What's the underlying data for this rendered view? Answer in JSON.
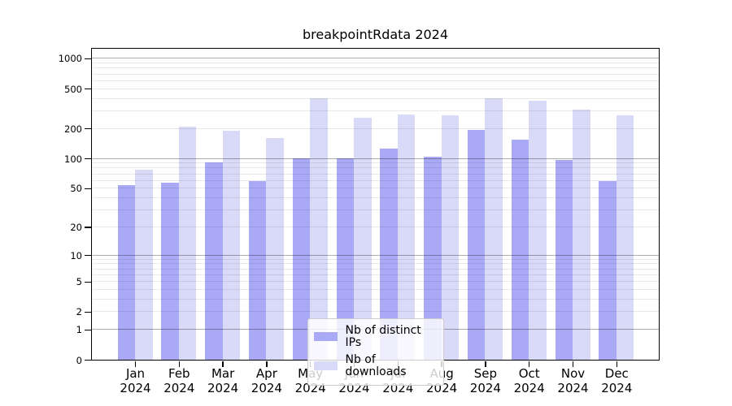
{
  "figure": {
    "title": "breakpointRdata 2024"
  },
  "y_axis": {
    "tick_labels": [
      "1000",
      "500",
      "200",
      "100",
      "50",
      "20",
      "10",
      "5",
      "2",
      "1",
      "0"
    ],
    "tick_values": [
      1000,
      500,
      200,
      100,
      50,
      20,
      10,
      5,
      2,
      1,
      0
    ]
  },
  "x_axis": {
    "months": [
      "Jan",
      "Feb",
      "Mar",
      "Apr",
      "May",
      "Jun",
      "Jul",
      "Aug",
      "Sep",
      "Oct",
      "Nov",
      "Dec"
    ],
    "year": "2024"
  },
  "legend": {
    "items": [
      {
        "label": "Nb of distinct IPs",
        "color": "#a9a9f6"
      },
      {
        "label": "Nb of downloads",
        "color": "#d9d9f8"
      }
    ]
  },
  "colors": {
    "bar_dark": "#a9a9f6",
    "bar_light": "#d9d9f8",
    "spine": "#000000",
    "background": "#ffffff"
  },
  "chart_data": {
    "type": "bar",
    "title": "breakpointRdata 2024",
    "categories": [
      "Jan 2024",
      "Feb 2024",
      "Mar 2024",
      "Apr 2024",
      "May 2024",
      "Jun 2024",
      "Jul 2024",
      "Aug 2024",
      "Sep 2024",
      "Oct 2024",
      "Nov 2024",
      "Dec 2024"
    ],
    "series": [
      {
        "name": "Nb of distinct IPs",
        "color": "#a9a9f6",
        "values": [
          54,
          57,
          92,
          59,
          100,
          100,
          125,
          104,
          194,
          153,
          96,
          59
        ]
      },
      {
        "name": "Nb of downloads",
        "color": "#d9d9f8",
        "values": [
          77,
          207,
          190,
          160,
          403,
          255,
          274,
          272,
          400,
          380,
          310,
          271
        ]
      }
    ],
    "yscale": "log1p",
    "ylim": [
      0,
      1260
    ],
    "yticks": [
      0,
      1,
      2,
      5,
      10,
      20,
      50,
      100,
      200,
      500,
      1000
    ],
    "major_gridlines": [
      1,
      10,
      100,
      1000
    ],
    "minor_gridlines": [
      2,
      3,
      4,
      5,
      6,
      7,
      8,
      9,
      20,
      30,
      40,
      50,
      60,
      70,
      80,
      90,
      200,
      300,
      400,
      500,
      600,
      700,
      800,
      900
    ],
    "grid": true,
    "legend_position": "lower center inside",
    "xlabel": "",
    "ylabel": ""
  }
}
